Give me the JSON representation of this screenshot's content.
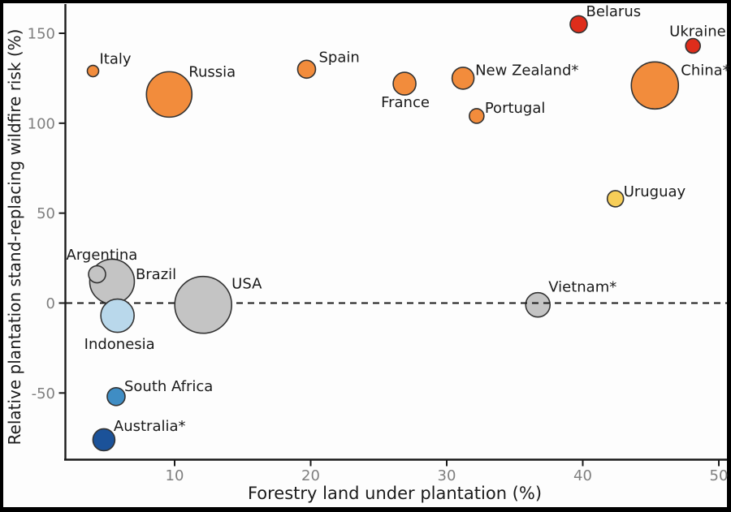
{
  "figure": {
    "frame_color": "#000000",
    "background": "#fdfdfd"
  },
  "chart_data": {
    "type": "scatter",
    "title": "",
    "xlabel": "Forestry land under plantation (%)",
    "ylabel": "Relative plantation stand-replacing wildfire risk (%)",
    "xlim": [
      2,
      50.7
    ],
    "ylim": [
      -88,
      165
    ],
    "x_ticks": [
      10,
      20,
      30,
      40,
      50
    ],
    "y_ticks": [
      150,
      100,
      50,
      0,
      -50
    ],
    "grid": false,
    "legend": "none",
    "zero_line": {
      "y": 0,
      "style": "dashed",
      "color": "#1a1a1a"
    },
    "axis_color": "#1a1a1a",
    "tick_label_color": "#7f7f7f",
    "label_color": "#1a1a1a",
    "bubble_stroke": "#333333",
    "points": [
      {
        "country": "Italy",
        "x": 4.0,
        "y": 129,
        "r": 7,
        "color": "#F28C3C",
        "label_offset": [
          8,
          -9
        ]
      },
      {
        "country": "Russia",
        "x": 9.6,
        "y": 116,
        "r": 28,
        "color": "#F28C3C",
        "label_offset": [
          24,
          -22
        ]
      },
      {
        "country": "Spain",
        "x": 19.7,
        "y": 130,
        "r": 11,
        "color": "#F28C3C",
        "label_offset": [
          15,
          -9
        ]
      },
      {
        "country": "France",
        "x": 26.9,
        "y": 122,
        "r": 14,
        "color": "#F28C3C",
        "label_offset": [
          -29,
          29
        ]
      },
      {
        "country": "New Zealand*",
        "x": 31.2,
        "y": 125,
        "r": 13.5,
        "color": "#F28C3C",
        "label_offset": [
          15,
          -4
        ]
      },
      {
        "country": "Portugal",
        "x": 32.2,
        "y": 104,
        "r": 9,
        "color": "#F28C3C",
        "label_offset": [
          10,
          -4
        ]
      },
      {
        "country": "Belarus",
        "x": 39.7,
        "y": 155,
        "r": 10.5,
        "color": "#DE2D1B",
        "label_offset": [
          9,
          -10
        ]
      },
      {
        "country": "Ukraine",
        "x": 48.1,
        "y": 143,
        "r": 9,
        "color": "#DE2D1B",
        "label_offset": [
          -29,
          -12
        ]
      },
      {
        "country": "China*",
        "x": 45.3,
        "y": 121,
        "r": 29,
        "color": "#F28C3C",
        "label_offset": [
          32,
          -13
        ]
      },
      {
        "country": "Uruguay",
        "x": 42.4,
        "y": 58,
        "r": 10,
        "color": "#F7CE58",
        "label_offset": [
          10,
          -3
        ]
      },
      {
        "country": "Argentina",
        "x": 4.3,
        "y": 16,
        "r": 10.5,
        "color": "#C4C4C4",
        "label_offset": [
          -38,
          -18
        ]
      },
      {
        "country": "Brazil",
        "x": 5.4,
        "y": 12,
        "r": 27.5,
        "color": "#C4C4C4",
        "label_offset": [
          29,
          -3
        ]
      },
      {
        "country": "USA",
        "x": 12.1,
        "y": -1,
        "r": 35,
        "color": "#C4C4C4",
        "label_offset": [
          35,
          -20
        ]
      },
      {
        "country": "Indonesia",
        "x": 5.8,
        "y": -7,
        "r": 20.5,
        "color": "#B9D8EB",
        "label_offset": [
          -41,
          41
        ]
      },
      {
        "country": "Vietnam*",
        "x": 36.7,
        "y": -1,
        "r": 15,
        "color": "#C4C4C4",
        "label_offset": [
          13,
          -16
        ],
        "behind_zero_line": true
      },
      {
        "country": "South Africa",
        "x": 5.7,
        "y": -52,
        "r": 11,
        "color": "#3F8DC4",
        "label_offset": [
          10,
          -7
        ]
      },
      {
        "country": "Australia*",
        "x": 4.8,
        "y": -76,
        "r": 13.5,
        "color": "#1B5299",
        "label_offset": [
          12,
          -11
        ]
      }
    ]
  }
}
